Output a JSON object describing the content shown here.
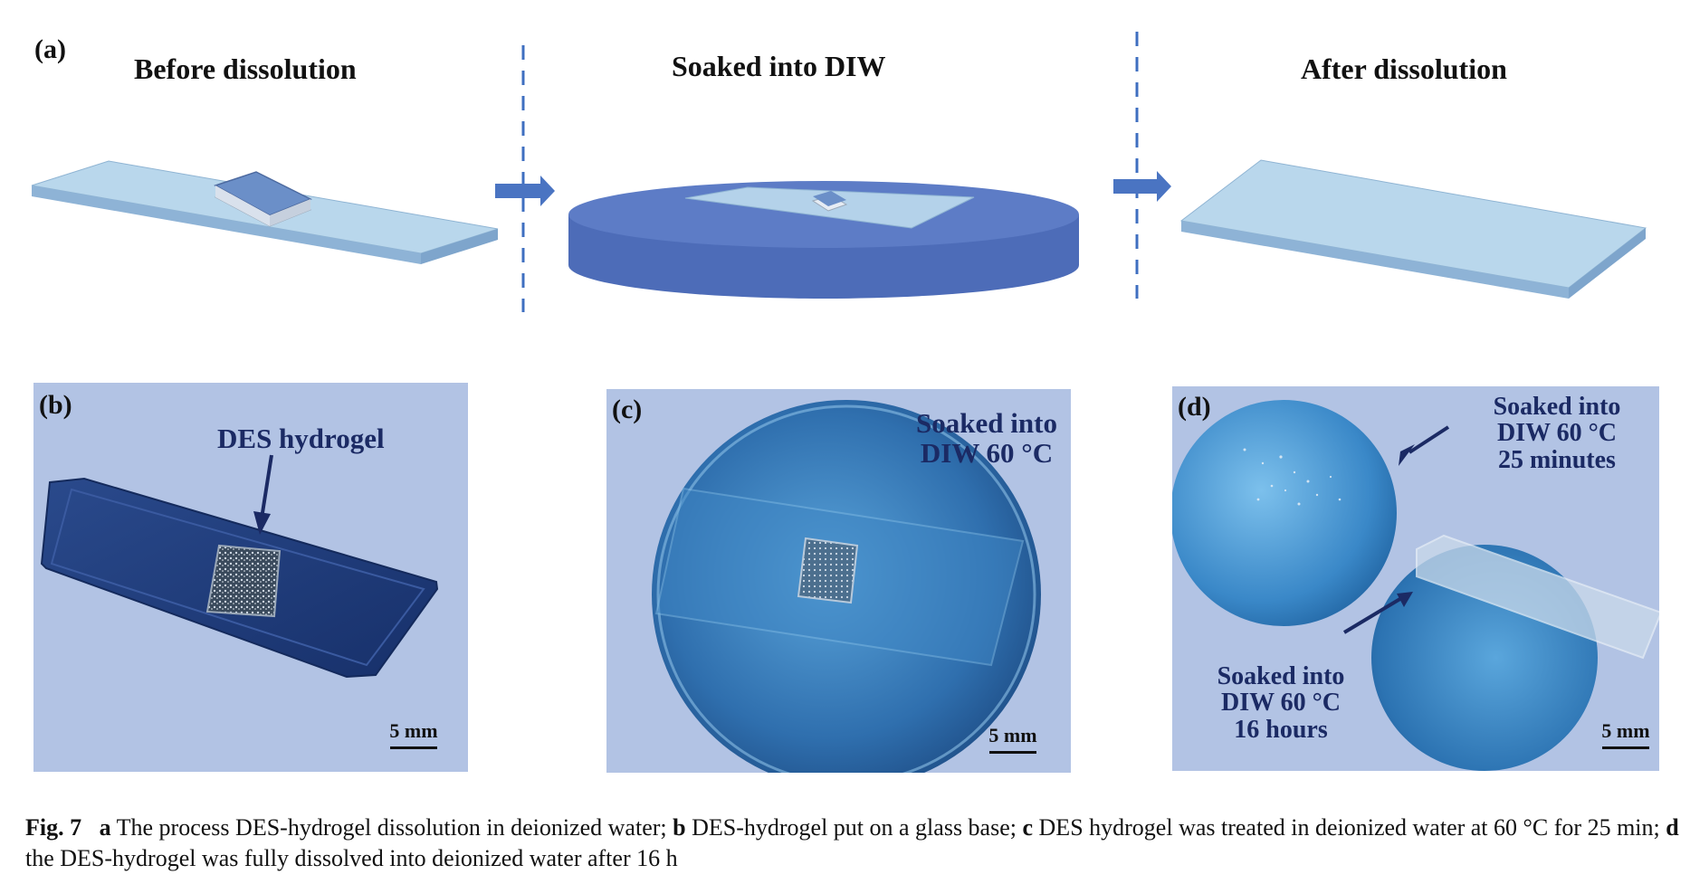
{
  "panel_a": {
    "label": "(a)",
    "stages": [
      "Before dissolution",
      "Soaked into DIW",
      "After dissolution"
    ]
  },
  "panel_b": {
    "label": "(b)",
    "annotation": "DES hydrogel",
    "scale_bar": "5 mm"
  },
  "panel_c": {
    "label": "(c)",
    "annotation_lines": [
      "Soaked into",
      "DIW 60 °C"
    ],
    "scale_bar": "5 mm"
  },
  "panel_d": {
    "label": "(d)",
    "annotation_top_lines": [
      "Soaked into",
      "DIW 60 °C",
      "25 minutes"
    ],
    "annotation_bottom_lines": [
      "Soaked into",
      "DIW 60 °C",
      "16 hours"
    ],
    "scale_bar": "5 mm"
  },
  "caption": {
    "fig_label": "Fig. 7",
    "parts": [
      {
        "letter": "a",
        "text": " The process DES-hydrogel dissolution in deionized water; "
      },
      {
        "letter": "b",
        "text": " DES-hydrogel put on a glass base; "
      },
      {
        "letter": "c",
        "text": " DES hydrogel was treated in deionized water at 60 °C for 25 min; "
      },
      {
        "letter": "d",
        "text": " the DES-hydrogel was fully dissolved into deionized water after 16 h"
      }
    ]
  },
  "colors": {
    "glass_slide": "#b4d3ea",
    "petri_dish": "#5676c0",
    "arrow": "#4a74c2",
    "photo_bg": "#b2c3e4",
    "annotation": "#1b2a64"
  }
}
